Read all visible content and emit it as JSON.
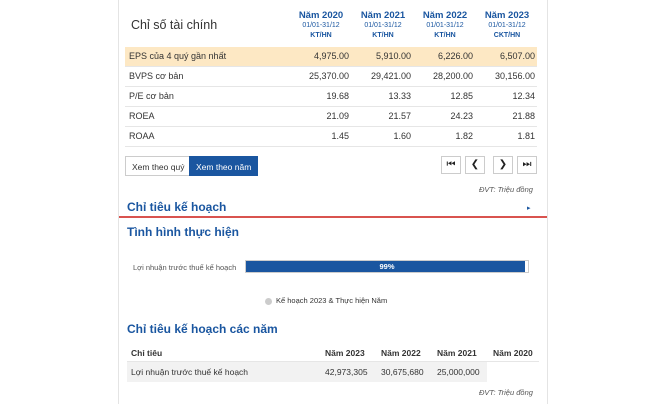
{
  "fin": {
    "title": "Chỉ số tài chính",
    "years": [
      {
        "year": "Năm 2020",
        "range": "01/01-31/12",
        "unit": "KT/HN"
      },
      {
        "year": "Năm 2021",
        "range": "01/01-31/12",
        "unit": "KT/HN"
      },
      {
        "year": "Năm 2022",
        "range": "01/01-31/12",
        "unit": "KT/HN"
      },
      {
        "year": "Năm 2023",
        "range": "01/01-31/12",
        "unit": "CKT/HN"
      }
    ],
    "rows": [
      {
        "label": "EPS của 4 quý gần nhất",
        "values": [
          "4,975.00",
          "5,910.00",
          "6,226.00",
          "6,507.00"
        ]
      },
      {
        "label": "BVPS cơ bản",
        "values": [
          "25,370.00",
          "29,421.00",
          "28,200.00",
          "30,156.00"
        ]
      },
      {
        "label": "P/E cơ bản",
        "values": [
          "19.68",
          "13.33",
          "12.85",
          "12.34"
        ]
      },
      {
        "label": "ROEA",
        "values": [
          "21.09",
          "21.57",
          "24.23",
          "21.88"
        ]
      },
      {
        "label": "ROAA",
        "values": [
          "1.45",
          "1.60",
          "1.82",
          "1.81"
        ]
      }
    ],
    "btn_quarter": "Xem theo quý",
    "btn_year": "Xem theo năm",
    "pager": {
      "first": "⏮",
      "prev": "❮",
      "next": "❯",
      "last": "⏭"
    },
    "unit_note": "ĐVT: Triệu đồng"
  },
  "plan": {
    "title": "Chỉ tiêu kế hoạch",
    "arrow": "▸"
  },
  "progress": {
    "title": "Tình hình thực hiện",
    "label": "Lợi nhuận trước thuế kế hoạch",
    "percent_value": 0.99,
    "percent_text": "99%",
    "legend": "Kế hoạch 2023 & Thực hiện Năm"
  },
  "plan_years": {
    "title": "Chỉ tiêu kế hoạch các năm",
    "headers": [
      "Chỉ tiêu",
      "Năm 2023",
      "Năm 2022",
      "Năm 2021",
      "Năm 2020"
    ],
    "rows": [
      {
        "label": "Lợi nhuận trước thuế kế hoạch",
        "values": [
          "42,973,305",
          "30,675,680",
          "25,000,000",
          ""
        ]
      }
    ],
    "unit_note": "ĐVT: Triệu đồng"
  },
  "colors": {
    "accent": "#1a56a0",
    "highlight": "#fde8c4",
    "divider": "#d9534f"
  }
}
